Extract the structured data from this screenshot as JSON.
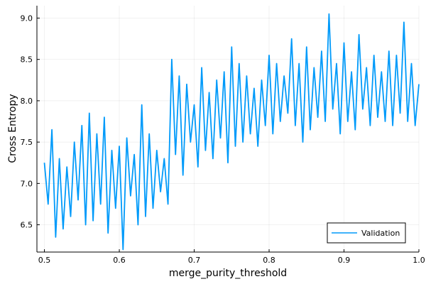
{
  "chart_data": {
    "type": "line",
    "title": "",
    "xlabel": "merge_purity_threshold",
    "ylabel": "Cross Entropy",
    "xlim": [
      0.49,
      1.0
    ],
    "ylim": [
      6.17,
      9.15
    ],
    "xticks": [
      "0.5",
      "0.6",
      "0.7",
      "0.8",
      "0.9",
      "1.0"
    ],
    "yticks": [
      "6.5",
      "7.0",
      "7.5",
      "8.0",
      "8.5",
      "9.0"
    ],
    "grid": true,
    "legend_position": "bottom-right",
    "series": [
      {
        "name": "Validation",
        "color": "#009AFA",
        "x": [
          0.5,
          0.505,
          0.51,
          0.515,
          0.52,
          0.525,
          0.53,
          0.535,
          0.54,
          0.545,
          0.55,
          0.555,
          0.56,
          0.565,
          0.57,
          0.575,
          0.58,
          0.585,
          0.59,
          0.595,
          0.6,
          0.605,
          0.61,
          0.615,
          0.62,
          0.625,
          0.63,
          0.635,
          0.64,
          0.645,
          0.65,
          0.655,
          0.66,
          0.665,
          0.67,
          0.675,
          0.68,
          0.685,
          0.69,
          0.695,
          0.7,
          0.705,
          0.71,
          0.715,
          0.72,
          0.725,
          0.73,
          0.735,
          0.74,
          0.745,
          0.75,
          0.755,
          0.76,
          0.765,
          0.77,
          0.775,
          0.78,
          0.785,
          0.79,
          0.795,
          0.8,
          0.805,
          0.81,
          0.815,
          0.82,
          0.825,
          0.83,
          0.835,
          0.84,
          0.845,
          0.85,
          0.855,
          0.86,
          0.865,
          0.87,
          0.875,
          0.88,
          0.885,
          0.89,
          0.895,
          0.9,
          0.905,
          0.91,
          0.915,
          0.92,
          0.925,
          0.93,
          0.935,
          0.94,
          0.945,
          0.95,
          0.955,
          0.96,
          0.965,
          0.97,
          0.975,
          0.98,
          0.985,
          0.99,
          0.995,
          1.0
        ],
        "y": [
          7.25,
          6.75,
          7.65,
          6.35,
          7.3,
          6.45,
          7.2,
          6.6,
          7.5,
          6.8,
          7.7,
          6.5,
          7.85,
          6.55,
          7.6,
          6.75,
          7.8,
          6.4,
          7.4,
          6.7,
          7.45,
          6.2,
          7.55,
          6.85,
          7.35,
          6.5,
          7.95,
          6.6,
          7.6,
          6.7,
          7.4,
          6.9,
          7.3,
          6.75,
          8.5,
          7.35,
          8.3,
          7.1,
          8.2,
          7.5,
          7.95,
          7.2,
          8.4,
          7.4,
          8.1,
          7.3,
          8.25,
          7.55,
          8.35,
          7.25,
          8.65,
          7.45,
          8.45,
          7.5,
          8.3,
          7.6,
          8.15,
          7.45,
          8.25,
          7.7,
          8.55,
          7.6,
          8.45,
          7.75,
          8.3,
          7.85,
          8.75,
          7.7,
          8.45,
          7.5,
          8.65,
          7.65,
          8.4,
          7.8,
          8.6,
          7.75,
          9.05,
          7.9,
          8.45,
          7.6,
          8.7,
          7.75,
          8.35,
          7.65,
          8.8,
          7.9,
          8.4,
          7.7,
          8.55,
          7.8,
          8.35,
          7.75,
          8.6,
          7.7,
          8.55,
          7.85,
          8.95,
          7.75,
          8.45,
          7.7,
          8.2
        ]
      }
    ]
  }
}
